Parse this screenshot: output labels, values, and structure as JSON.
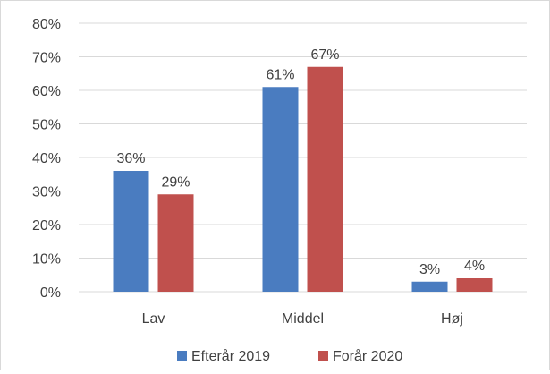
{
  "chart_data": {
    "type": "bar",
    "categories": [
      "Lav",
      "Middel",
      "Høj"
    ],
    "series": [
      {
        "name": "Efterår 2019",
        "values": [
          36,
          61,
          3
        ],
        "labels": [
          "36%",
          "61%",
          "3%"
        ],
        "color": "#4a7cc0"
      },
      {
        "name": "Forår 2020",
        "values": [
          29,
          67,
          4
        ],
        "labels": [
          "29%",
          "67%",
          "4%"
        ],
        "color": "#c0504d"
      }
    ],
    "y_ticks": [
      "0%",
      "10%",
      "20%",
      "30%",
      "40%",
      "50%",
      "60%",
      "70%",
      "80%"
    ],
    "ylim": [
      0,
      80
    ],
    "grid": true,
    "legend_position": "bottom",
    "title": "",
    "xlabel": "",
    "ylabel": ""
  }
}
